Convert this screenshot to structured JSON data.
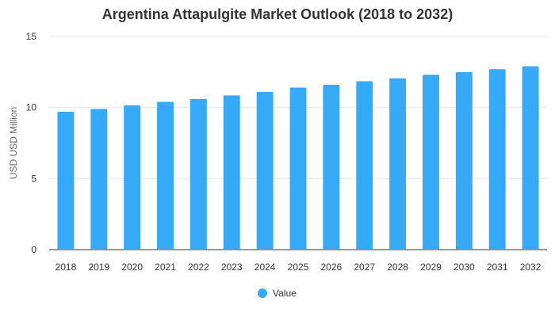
{
  "chart_data": {
    "type": "bar",
    "title": "Argentina Attapulgite Market Outlook (2018 to 2032)",
    "xlabel": "",
    "ylabel": "USD USD Million",
    "categories": [
      "2018",
      "2019",
      "2020",
      "2021",
      "2022",
      "2023",
      "2024",
      "2025",
      "2026",
      "2027",
      "2028",
      "2029",
      "2030",
      "2031",
      "2032"
    ],
    "series": [
      {
        "name": "Value",
        "values": [
          9.7,
          9.9,
          10.15,
          10.4,
          10.6,
          10.85,
          11.1,
          11.4,
          11.6,
          11.85,
          12.05,
          12.3,
          12.5,
          12.7,
          12.9
        ]
      }
    ],
    "ylim": [
      0,
      15
    ],
    "yticks": [
      0,
      5,
      10,
      15
    ],
    "grid": true,
    "legend_position": "bottom",
    "bar_color": "#36aaf7"
  }
}
